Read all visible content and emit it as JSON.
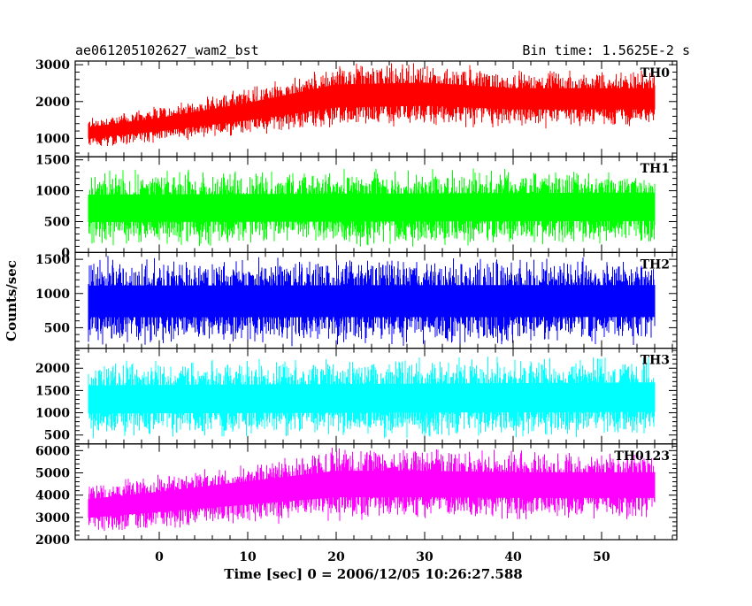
{
  "chart_data": {
    "type": "line",
    "title_left": "ae061205102627_wam2_bst",
    "title_right": "Bin time: 1.5625E-2 s",
    "xlabel": "Time [sec] 0 = 2006/12/05 10:26:27.588",
    "ylabel": "Counts/sec",
    "xlim": [
      -9.5,
      58.5
    ],
    "x_ticks": [
      0,
      10,
      20,
      30,
      40,
      50
    ],
    "x_minor_step": 2,
    "data_x_range": [
      -8,
      56
    ],
    "grid": false,
    "panels": [
      {
        "label": "TH0",
        "color": "#ff0000",
        "ylim": [
          500,
          3100
        ],
        "y_ticks": [
          1000,
          2000,
          3000
        ],
        "y_minor_step": 200,
        "profile": {
          "x": [
            -8,
            0,
            10,
            20,
            30,
            40,
            56
          ],
          "low": [
            700,
            850,
            1050,
            1250,
            1300,
            1250,
            1250
          ],
          "high": [
            1600,
            1900,
            2400,
            3050,
            3100,
            2900,
            2900
          ]
        }
      },
      {
        "label": "TH1",
        "color": "#00ff00",
        "ylim": [
          0,
          1550
        ],
        "y_ticks": [
          0,
          500,
          1000,
          1500
        ],
        "y_minor_step": 100,
        "profile": {
          "x": [
            -8,
            56
          ],
          "low": [
            80,
            80
          ],
          "high": [
            1350,
            1400
          ]
        }
      },
      {
        "label": "TH2",
        "color": "#0000ff",
        "ylim": [
          200,
          1600
        ],
        "y_ticks": [
          500,
          1000,
          1500
        ],
        "y_minor_step": 100,
        "profile": {
          "x": [
            -8,
            56
          ],
          "low": [
            220,
            220
          ],
          "high": [
            1550,
            1560
          ]
        }
      },
      {
        "label": "TH3",
        "color": "#00ffff",
        "ylim": [
          300,
          2450
        ],
        "y_ticks": [
          500,
          1000,
          1500,
          2000
        ],
        "y_minor_step": 100,
        "profile": {
          "x": [
            -8,
            56
          ],
          "low": [
            400,
            400
          ],
          "high": [
            2200,
            2300
          ]
        }
      },
      {
        "label": "TH0123",
        "color": "#ff00ff",
        "ylim": [
          2000,
          6300
        ],
        "y_ticks": [
          2000,
          3000,
          4000,
          5000,
          6000
        ],
        "y_minor_step": 200,
        "profile": {
          "x": [
            -8,
            0,
            10,
            20,
            30,
            40,
            56
          ],
          "low": [
            2200,
            2400,
            2600,
            2800,
            2800,
            2800,
            2800
          ],
          "high": [
            4600,
            5000,
            5600,
            6200,
            6200,
            6100,
            6100
          ]
        }
      }
    ]
  }
}
